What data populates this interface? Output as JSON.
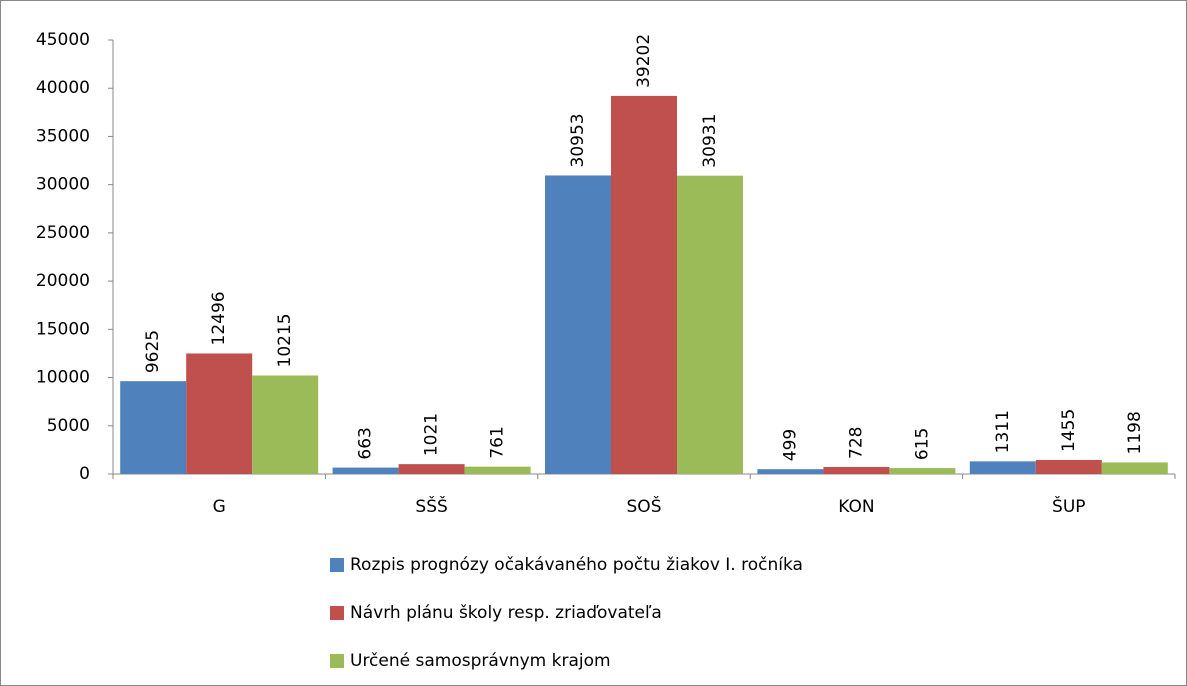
{
  "chart_data": {
    "type": "bar",
    "categories": [
      "G",
      "SŠŠ",
      "SOŠ",
      "KON",
      "ŠUP"
    ],
    "series": [
      {
        "name": "Rozpis prognózy očakávaného počtu žiakov I. ročníka",
        "color": "#4f81bd",
        "values": [
          9625,
          663,
          30953,
          499,
          1311
        ]
      },
      {
        "name": "Návrh plánu školy resp. zriaďovateľa",
        "color": "#c0504d",
        "values": [
          12496,
          1021,
          39202,
          728,
          1455
        ]
      },
      {
        "name": "Určené samosprávnym krajom",
        "color": "#9bbb59",
        "values": [
          10215,
          761,
          30931,
          615,
          1198
        ]
      }
    ],
    "ylim": [
      0,
      45000
    ],
    "yticks": [
      0,
      5000,
      10000,
      15000,
      20000,
      25000,
      30000,
      35000,
      40000,
      45000
    ],
    "grid": false,
    "legend": "bottom"
  }
}
